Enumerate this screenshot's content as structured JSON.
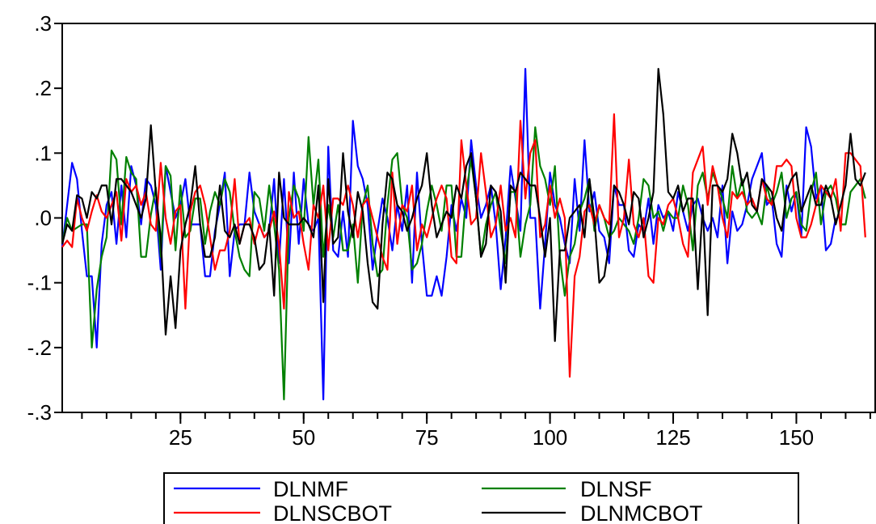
{
  "chart_data": {
    "type": "line",
    "title": "",
    "xlabel": "",
    "ylabel": "",
    "xlim": [
      1,
      166
    ],
    "ylim": [
      -0.3,
      0.3
    ],
    "x_ticks": [
      25,
      50,
      75,
      100,
      125,
      150
    ],
    "x_tick_labels": [
      "25",
      "50",
      "75",
      "100",
      "125",
      "150"
    ],
    "y_ticks": [
      -0.3,
      -0.2,
      -0.1,
      0.0,
      0.1,
      0.2,
      0.3
    ],
    "y_tick_labels": [
      "-.3",
      "-.2",
      "-.1",
      ".0",
      ".1",
      ".2",
      ".3"
    ],
    "grid": false,
    "legend_position": "bottom-center",
    "series": [
      {
        "name": "DLNMF",
        "color": "#0000ff",
        "values": [
          -0.045,
          0.02,
          0.085,
          0.06,
          -0.02,
          -0.09,
          -0.09,
          -0.2,
          -0.04,
          0.02,
          0.04,
          -0.04,
          0.05,
          -0.03,
          0.08,
          0.05,
          -0.01,
          0.06,
          0.05,
          0.02,
          -0.08,
          0.08,
          0.04,
          0.0,
          0.02,
          0.06,
          -0.01,
          -0.01,
          -0.01,
          -0.09,
          -0.09,
          -0.02,
          0.02,
          0.07,
          -0.09,
          -0.02,
          -0.01,
          -0.01,
          0.07,
          0.01,
          -0.01,
          -0.03,
          -0.02,
          0.06,
          -0.07,
          0.06,
          -0.07,
          0.07,
          -0.04,
          0.06,
          -0.01,
          -0.02,
          0.0,
          -0.28,
          0.11,
          -0.05,
          -0.06,
          0.01,
          -0.06,
          0.15,
          0.08,
          0.06,
          0.02,
          -0.08,
          -0.02,
          0.03,
          0.0,
          -0.05,
          0.02,
          -0.02,
          0.05,
          -0.1,
          0.07,
          -0.04,
          -0.12,
          -0.12,
          -0.09,
          -0.12,
          -0.06,
          0.02,
          -0.02,
          0.03,
          0.0,
          0.12,
          0.05,
          0.0,
          0.02,
          0.05,
          -0.01,
          -0.11,
          -0.03,
          0.08,
          0.03,
          -0.02,
          0.23,
          0.0,
          0.0,
          -0.14,
          -0.04,
          0.07,
          0.02,
          0.0,
          -0.04,
          -0.07,
          0.06,
          -0.02,
          0.12,
          0.01,
          0.04,
          -0.02,
          -0.03,
          -0.07,
          0.05,
          0.02,
          0.02,
          -0.05,
          -0.06,
          -0.01,
          -0.02,
          0.03,
          -0.04,
          0.02,
          0.0,
          0.01,
          -0.02,
          0.04,
          0.01,
          -0.02,
          0.02,
          0.03,
          0.0,
          -0.02,
          0.0,
          -0.03,
          0.05,
          -0.07,
          0.01,
          -0.02,
          -0.01,
          0.02,
          0.06,
          0.08,
          0.1,
          0.02,
          0.03,
          -0.04,
          -0.06,
          0.05,
          0.01,
          0.04,
          -0.03,
          0.14,
          0.11,
          0.03,
          0.05,
          -0.05,
          -0.04,
          0.0
        ]
      },
      {
        "name": "DLNSF",
        "color": "#008000",
        "values": [
          -0.04,
          0.0,
          -0.02,
          -0.015,
          -0.01,
          -0.01,
          -0.2,
          -0.11,
          -0.06,
          -0.03,
          0.104,
          0.09,
          -0.01,
          0.094,
          0.07,
          0.06,
          -0.06,
          -0.06,
          0.005,
          0.047,
          -0.06,
          0.08,
          0.065,
          -0.05,
          0.05,
          -0.03,
          -0.02,
          0.03,
          0.03,
          -0.04,
          0.01,
          0.04,
          0.02,
          0.06,
          0.04,
          -0.02,
          -0.06,
          -0.08,
          -0.09,
          0.04,
          0.03,
          -0.02,
          0.05,
          -0.01,
          -0.08,
          -0.28,
          0.0,
          0.05,
          0.03,
          -0.02,
          0.125,
          0.02,
          0.09,
          -0.06,
          0.02,
          -0.03,
          0.02,
          -0.05,
          -0.05,
          -0.01,
          -0.1,
          0.02,
          0.05,
          -0.04,
          -0.09,
          -0.08,
          0.02,
          0.09,
          0.1,
          0.02,
          0.0,
          -0.08,
          -0.07,
          -0.04,
          0.01,
          0.05,
          0.02,
          -0.02,
          0.05,
          0.05,
          -0.06,
          -0.06,
          0.04,
          0.09,
          0.03,
          -0.06,
          -0.01,
          0.02,
          0.04,
          -0.02,
          -0.07,
          0.04,
          0.04,
          -0.06,
          -0.01,
          0.02,
          0.14,
          0.08,
          0.06,
          0.02,
          0.08,
          -0.06,
          -0.12,
          -0.06,
          -0.04,
          0.01,
          0.03,
          0.06,
          -0.02,
          0.02,
          0.0,
          -0.03,
          -0.02,
          0.0,
          -0.01,
          -0.02,
          -0.04,
          0.0,
          0.06,
          0.05,
          0.0,
          0.01,
          -0.02,
          0.01,
          0.0,
          0.0,
          0.05,
          0.02,
          -0.05,
          0.05,
          0.07,
          0.03,
          0.07,
          0.05,
          0.03,
          0.0,
          0.08,
          0.03,
          0.06,
          0.01,
          0.0,
          0.01,
          -0.01,
          0.05,
          0.02,
          0.04,
          0.07,
          0.0,
          0.03,
          0.04,
          -0.01,
          -0.02,
          0.04,
          0.07,
          -0.01,
          0.04,
          0.05,
          0.03,
          -0.01,
          -0.01,
          0.04,
          0.05,
          0.06,
          0.03
        ]
      },
      {
        "name": "DLNSCBOT",
        "color": "#ff0000",
        "values": [
          -0.045,
          -0.035,
          -0.045,
          0.03,
          0.0,
          -0.02,
          0.01,
          0.035,
          0.01,
          0.0,
          0.02,
          0.04,
          -0.035,
          0.06,
          0.04,
          0.05,
          0.02,
          0.04,
          -0.01,
          -0.02,
          0.085,
          0.0,
          -0.04,
          0.01,
          0.02,
          -0.14,
          0.01,
          0.04,
          0.05,
          0.02,
          -0.03,
          -0.08,
          -0.05,
          -0.05,
          -0.02,
          0.06,
          -0.04,
          -0.01,
          0.0,
          -0.04,
          -0.01,
          -0.03,
          -0.02,
          0.01,
          -0.04,
          -0.14,
          0.04,
          0.0,
          0.01,
          -0.04,
          -0.08,
          0.02,
          0.0,
          0.05,
          -0.05,
          0.03,
          0.03,
          0.02,
          0.05,
          0.02,
          -0.03,
          0.02,
          0.03,
          0.0,
          -0.03,
          -0.06,
          -0.08,
          0.07,
          -0.04,
          0.02,
          0.01,
          0.05,
          -0.05,
          -0.01,
          -0.03,
          0.0,
          0.03,
          0.05,
          0.03,
          -0.06,
          -0.07,
          0.12,
          0.05,
          -0.01,
          0.0,
          0.1,
          0.04,
          -0.03,
          -0.01,
          0.05,
          -0.02,
          0.0,
          -0.03,
          0.15,
          0.03,
          0.1,
          0.12,
          -0.03,
          -0.01,
          0.05,
          0.0,
          0.03,
          0.0,
          -0.245,
          -0.09,
          -0.06,
          0.01,
          0.02,
          -0.01,
          0.02,
          0.0,
          -0.01,
          0.16,
          -0.03,
          0.0,
          0.09,
          -0.01,
          -0.03,
          0.0,
          -0.09,
          -0.1,
          0.0,
          -0.01,
          0.02,
          0.03,
          0.0,
          -0.04,
          -0.06,
          0.07,
          0.09,
          0.11,
          0.02,
          0.08,
          0.05,
          0.0,
          -0.03,
          0.04,
          0.03,
          0.04,
          0.02,
          0.03,
          0.01,
          0.06,
          0.03,
          0.02,
          0.08,
          0.08,
          0.09,
          0.08,
          0.0,
          -0.03,
          -0.03,
          -0.01,
          0.02,
          0.05,
          0.04,
          0.03,
          0.06,
          -0.02,
          0.1,
          0.1,
          0.09,
          0.08,
          -0.03
        ]
      },
      {
        "name": "DLNMCBOT",
        "color": "#000000",
        "values": [
          -0.04,
          -0.01,
          -0.02,
          0.035,
          0.03,
          0.0,
          0.04,
          0.03,
          0.05,
          0.05,
          -0.01,
          0.06,
          0.06,
          0.05,
          0.04,
          0.02,
          0.0,
          0.03,
          0.143,
          0.04,
          -0.03,
          -0.18,
          -0.09,
          -0.17,
          -0.05,
          -0.01,
          0.02,
          0.08,
          -0.01,
          -0.06,
          -0.06,
          -0.03,
          0.05,
          -0.02,
          -0.03,
          -0.01,
          -0.04,
          -0.01,
          -0.01,
          -0.03,
          -0.08,
          -0.07,
          -0.01,
          -0.12,
          0.07,
          0.0,
          -0.01,
          -0.01,
          -0.01,
          0.0,
          -0.01,
          -0.03,
          0.05,
          -0.13,
          0.06,
          -0.04,
          -0.03,
          0.1,
          0.01,
          -0.03,
          0.04,
          0.01,
          -0.07,
          -0.13,
          -0.14,
          -0.01,
          0.07,
          0.06,
          0.02,
          0.01,
          -0.02,
          0.0,
          0.03,
          0.05,
          0.1,
          0.02,
          -0.03,
          -0.01,
          0.01,
          0.0,
          0.05,
          0.03,
          0.08,
          0.1,
          0.03,
          -0.06,
          -0.04,
          0.05,
          0.04,
          0.01,
          -0.1,
          0.05,
          0.04,
          0.07,
          0.06,
          0.05,
          0.05,
          0.0,
          -0.06,
          0.0,
          -0.19,
          -0.05,
          -0.05,
          0.0,
          0.01,
          0.02,
          -0.03,
          0.06,
          0.0,
          -0.1,
          -0.09,
          -0.04,
          0.05,
          0.04,
          0.02,
          -0.01,
          0.04,
          0.03,
          -0.03,
          0.0,
          0.04,
          0.23,
          0.16,
          0.04,
          0.03,
          0.05,
          0.01,
          0.03,
          0.03,
          -0.11,
          0.02,
          -0.15,
          0.05,
          0.05,
          0.04,
          0.06,
          0.13,
          0.1,
          0.05,
          0.07,
          0.02,
          0.01,
          0.06,
          0.05,
          0.04,
          0.0,
          -0.02,
          0.04,
          0.06,
          0.07,
          0.01,
          0.03,
          0.05,
          0.02,
          0.02,
          0.05,
          0.03,
          -0.01,
          0.02,
          0.05,
          0.13,
          0.06,
          0.05,
          0.07
        ]
      }
    ]
  }
}
